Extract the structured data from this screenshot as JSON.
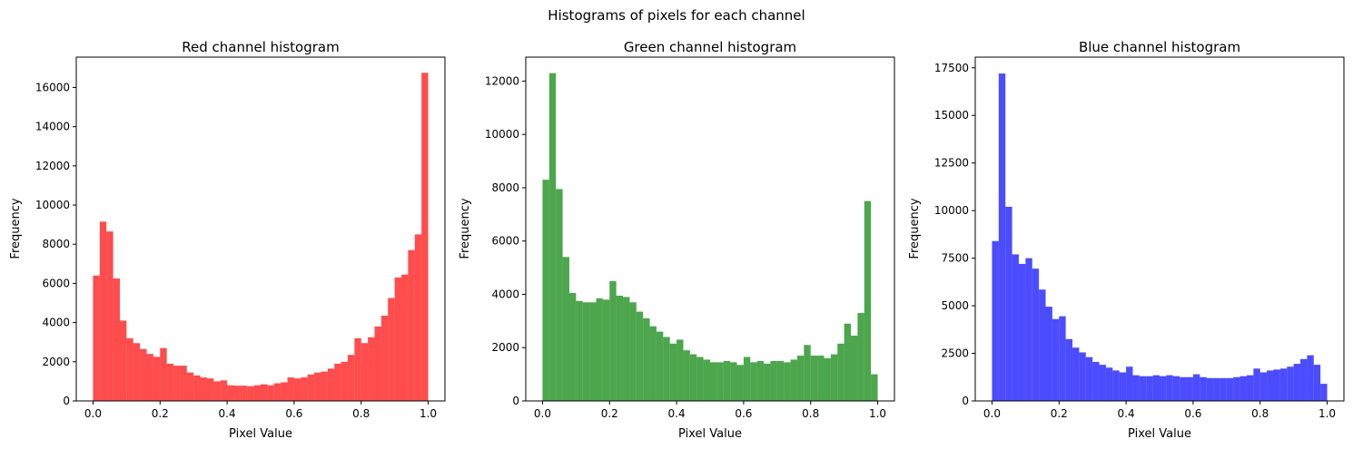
{
  "suptitle": "Histograms of pixels for each channel",
  "chart_data": [
    {
      "type": "bar",
      "title": "Red channel histogram",
      "xlabel": "Pixel Value",
      "ylabel": "Frequency",
      "color": "#ff0000",
      "alpha": 0.7,
      "bin_range": [
        0,
        1
      ],
      "bins": 50,
      "xlim": [
        -0.05,
        1.05
      ],
      "ylim": [
        0,
        17550
      ],
      "xticks": [
        0.0,
        0.2,
        0.4,
        0.6,
        0.8,
        1.0
      ],
      "xtick_labels": [
        "0.0",
        "0.2",
        "0.4",
        "0.6",
        "0.8",
        "1.0"
      ],
      "yticks": [
        0,
        2000,
        4000,
        6000,
        8000,
        10000,
        12000,
        14000,
        16000
      ],
      "ytick_labels": [
        "0",
        "2000",
        "4000",
        "6000",
        "8000",
        "10000",
        "12000",
        "14000",
        "16000"
      ],
      "grid": false,
      "values": [
        6400,
        9150,
        8650,
        6250,
        4100,
        3200,
        2950,
        2650,
        2400,
        2250,
        2700,
        1900,
        1800,
        1800,
        1450,
        1300,
        1200,
        1150,
        1000,
        1050,
        800,
        780,
        780,
        750,
        800,
        850,
        800,
        900,
        950,
        1200,
        1150,
        1200,
        1350,
        1450,
        1500,
        1650,
        1900,
        2000,
        2350,
        3200,
        2950,
        3250,
        3800,
        4350,
        5250,
        6300,
        6450,
        7700,
        8500,
        16750
      ]
    },
    {
      "type": "bar",
      "title": "Green channel histogram",
      "xlabel": "Pixel Value",
      "ylabel": "Frequency",
      "color": "#008000",
      "alpha": 0.7,
      "bin_range": [
        0,
        1
      ],
      "bins": 50,
      "xlim": [
        -0.05,
        1.05
      ],
      "ylim": [
        0,
        12900
      ],
      "xticks": [
        0.0,
        0.2,
        0.4,
        0.6,
        0.8,
        1.0
      ],
      "xtick_labels": [
        "0.0",
        "0.2",
        "0.4",
        "0.6",
        "0.8",
        "1.0"
      ],
      "yticks": [
        0,
        2000,
        4000,
        6000,
        8000,
        10000,
        12000
      ],
      "ytick_labels": [
        "0",
        "2000",
        "4000",
        "6000",
        "8000",
        "10000",
        "12000"
      ],
      "grid": false,
      "values": [
        8300,
        12300,
        7950,
        5400,
        4050,
        3750,
        3700,
        3700,
        3850,
        3800,
        4500,
        3950,
        3900,
        3700,
        3350,
        3100,
        2800,
        2600,
        2400,
        2150,
        2300,
        1900,
        1750,
        1650,
        1550,
        1450,
        1450,
        1500,
        1450,
        1350,
        1650,
        1450,
        1500,
        1400,
        1500,
        1500,
        1450,
        1550,
        1700,
        2100,
        1700,
        1700,
        1600,
        1750,
        2150,
        2900,
        2450,
        3300,
        7500,
        1000
      ]
    },
    {
      "type": "bar",
      "title": "Blue channel histogram",
      "xlabel": "Pixel Value",
      "ylabel": "Frequency",
      "color": "#0000ff",
      "alpha": 0.7,
      "bin_range": [
        0,
        1
      ],
      "bins": 50,
      "xlim": [
        -0.05,
        1.05
      ],
      "ylim": [
        0,
        18060
      ],
      "xticks": [
        0.0,
        0.2,
        0.4,
        0.6,
        0.8,
        1.0
      ],
      "xtick_labels": [
        "0.0",
        "0.2",
        "0.4",
        "0.6",
        "0.8",
        "1.0"
      ],
      "yticks": [
        0,
        2500,
        5000,
        7500,
        10000,
        12500,
        15000,
        17500
      ],
      "ytick_labels": [
        "0",
        "2500",
        "5000",
        "7500",
        "10000",
        "12500",
        "15000",
        "17500"
      ],
      "grid": false,
      "values": [
        8400,
        17200,
        10200,
        7700,
        7200,
        7500,
        6950,
        5850,
        4950,
        4300,
        4450,
        3250,
        2800,
        2550,
        2300,
        2050,
        1900,
        1750,
        1600,
        1500,
        1800,
        1350,
        1300,
        1300,
        1350,
        1300,
        1350,
        1300,
        1250,
        1250,
        1400,
        1250,
        1200,
        1200,
        1200,
        1200,
        1250,
        1300,
        1350,
        1700,
        1500,
        1600,
        1650,
        1700,
        1800,
        1950,
        2200,
        2400,
        1900,
        900
      ]
    }
  ]
}
